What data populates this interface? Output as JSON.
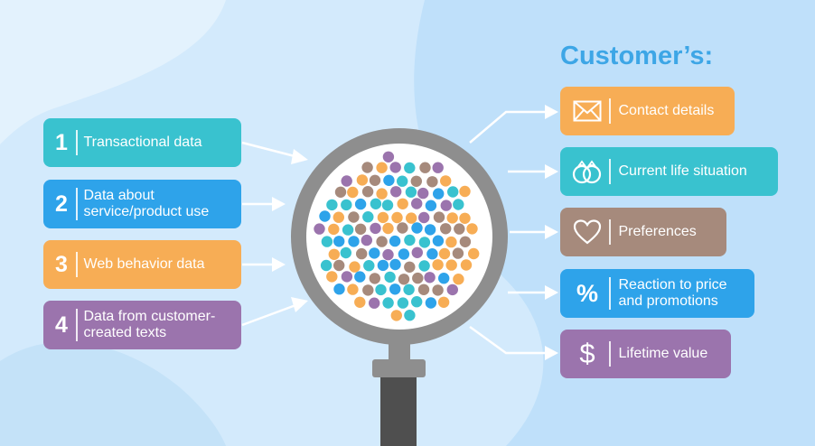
{
  "heading": "Customer’s:",
  "colors": {
    "background": "#d3eafc",
    "teal": "#39c2cf",
    "blue": "#2ea3ea",
    "orange": "#f7ad55",
    "purple": "#9b74ad",
    "taupe": "#a68a7c",
    "magnifier_gray": "#8e8e8e",
    "handle_dark": "#4f4f4f"
  },
  "data_sources": [
    {
      "number": "1",
      "label": "Transactional data",
      "color": "teal"
    },
    {
      "number": "2",
      "label": "Data about\nservice/product use",
      "color": "blue"
    },
    {
      "number": "3",
      "label": "Web behavior data",
      "color": "orange"
    },
    {
      "number": "4",
      "label": "Data from customer-\ncreated texts",
      "color": "purple"
    }
  ],
  "insights": [
    {
      "icon": "envelope-icon",
      "label": "Contact details",
      "color": "orange"
    },
    {
      "icon": "rings-icon",
      "label": "Current life situation",
      "color": "teal"
    },
    {
      "icon": "heart-icon",
      "label": "Preferences",
      "color": "taupe"
    },
    {
      "icon": "percent-icon",
      "symbol": "%",
      "label": "Reaction to price\nand promotions",
      "color": "blue"
    },
    {
      "icon": "dollar-icon",
      "symbol": "$",
      "label": "Lifetime value",
      "color": "purple"
    }
  ]
}
